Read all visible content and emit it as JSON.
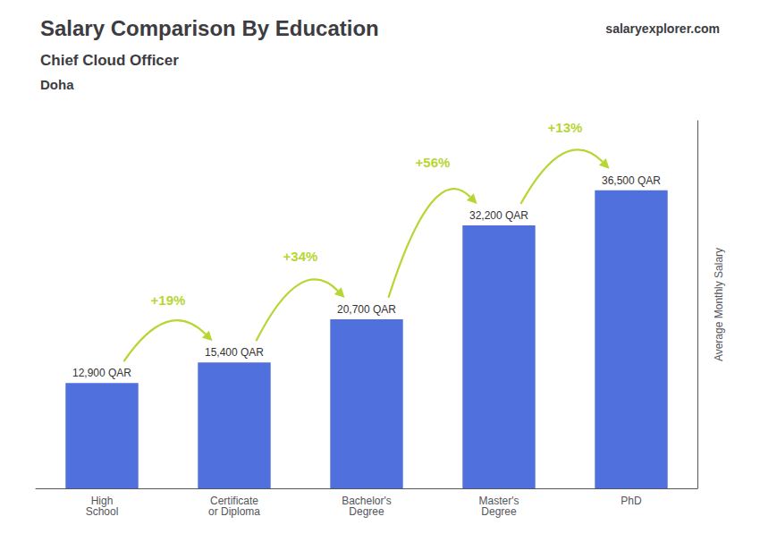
{
  "chart_data": {
    "type": "bar",
    "title": "Salary Comparison By Education",
    "subtitle": [
      "Chief Cloud Officer",
      "Doha"
    ],
    "source": "salaryexplorer.com",
    "ylabel": "Average Monthly Salary",
    "categories": [
      "High\nSchool",
      "Certificate\nor Diploma",
      "Bachelor's\nDegree",
      "Master's\nDegree",
      "PhD"
    ],
    "values": [
      12900,
      15400,
      20700,
      32200,
      36500
    ],
    "value_labels": [
      "12,900 QAR",
      "15,400 QAR",
      "20,700 QAR",
      "32,200 QAR",
      "36,500 QAR"
    ],
    "data_labels": true,
    "changes": [
      {
        "value": 19,
        "label": "+19%"
      },
      {
        "value": 34,
        "label": "+34%"
      },
      {
        "value": 56,
        "label": "+56%"
      },
      {
        "value": 13,
        "label": "+13%"
      }
    ],
    "ylim": [
      0,
      45000
    ],
    "grid": false,
    "tick_labels": "x"
  }
}
